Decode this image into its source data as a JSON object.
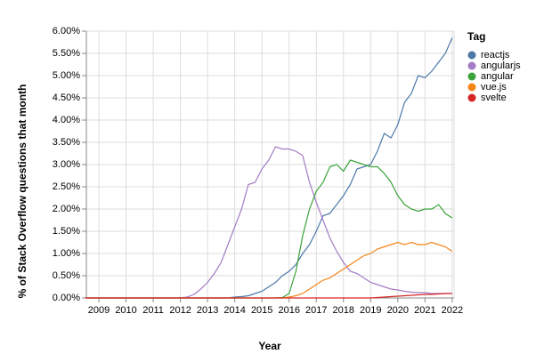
{
  "chart_data": {
    "type": "line",
    "x_label": "Year",
    "y_label": "% of Stack Overflow questions that month",
    "legend_title": "Tag",
    "legend_position": "right",
    "grid": true,
    "x": [
      2008.5,
      2008.75,
      2009,
      2009.25,
      2009.5,
      2009.75,
      2010,
      2010.25,
      2010.5,
      2010.75,
      2011,
      2011.25,
      2011.5,
      2011.75,
      2012,
      2012.25,
      2012.5,
      2012.75,
      2013,
      2013.25,
      2013.5,
      2013.75,
      2014,
      2014.25,
      2014.5,
      2014.75,
      2015,
      2015.25,
      2015.5,
      2015.75,
      2016,
      2016.25,
      2016.5,
      2016.75,
      2017,
      2017.25,
      2017.5,
      2017.75,
      2018,
      2018.25,
      2018.5,
      2018.75,
      2019,
      2019.25,
      2019.5,
      2019.75,
      2020,
      2020.25,
      2020.5,
      2020.75,
      2021,
      2021.25,
      2021.5,
      2021.75,
      2022
    ],
    "xlim": [
      2008.54,
      2022.07
    ],
    "xticks": [
      2009,
      2010,
      2011,
      2012,
      2013,
      2014,
      2015,
      2016,
      2017,
      2018,
      2019,
      2020,
      2021,
      2022
    ],
    "ylim": [
      0,
      6
    ],
    "yticks": [
      {
        "value": 0,
        "label": "0.00%"
      },
      {
        "value": 0.5,
        "label": "0.50%"
      },
      {
        "value": 1,
        "label": "1.00%"
      },
      {
        "value": 1.5,
        "label": "1.50%"
      },
      {
        "value": 2,
        "label": "2.00%"
      },
      {
        "value": 2.5,
        "label": "2.50%"
      },
      {
        "value": 3,
        "label": "3.00%"
      },
      {
        "value": 3.5,
        "label": "3.50%"
      },
      {
        "value": 4,
        "label": "4.00%"
      },
      {
        "value": 4.5,
        "label": "4.50%"
      },
      {
        "value": 5,
        "label": "5.00%"
      },
      {
        "value": 5.5,
        "label": "5.50%"
      },
      {
        "value": 6,
        "label": "6.00%"
      }
    ],
    "series": [
      {
        "name": "reactjs",
        "color": "#4c78a8",
        "values": [
          0,
          0,
          0,
          0,
          0,
          0,
          0,
          0,
          0,
          0,
          0,
          0,
          0,
          0,
          0,
          0,
          0,
          0,
          0,
          0,
          0,
          0,
          0.02,
          0.03,
          0.05,
          0.1,
          0.15,
          0.25,
          0.35,
          0.5,
          0.6,
          0.75,
          1.0,
          1.2,
          1.5,
          1.85,
          1.9,
          2.1,
          2.3,
          2.55,
          2.9,
          2.95,
          3.0,
          3.3,
          3.7,
          3.6,
          3.9,
          4.4,
          4.6,
          5.0,
          4.95,
          5.1,
          5.3,
          5.5,
          5.85
        ]
      },
      {
        "name": "angularjs",
        "color": "#a47cc4",
        "values": [
          0,
          0,
          0,
          0,
          0,
          0,
          0,
          0,
          0,
          0,
          0,
          0,
          0,
          0,
          0,
          0.02,
          0.08,
          0.2,
          0.35,
          0.55,
          0.8,
          1.2,
          1.6,
          2.0,
          2.55,
          2.6,
          2.9,
          3.1,
          3.4,
          3.35,
          3.35,
          3.3,
          3.2,
          2.6,
          2.15,
          1.75,
          1.35,
          1.05,
          0.8,
          0.6,
          0.55,
          0.45,
          0.35,
          0.3,
          0.25,
          0.2,
          0.18,
          0.15,
          0.13,
          0.12,
          0.12,
          0.1,
          0.1,
          0.1,
          0.1
        ]
      },
      {
        "name": "angular",
        "color": "#3aa33a",
        "values": [
          0,
          0,
          0,
          0,
          0,
          0,
          0,
          0,
          0,
          0,
          0,
          0,
          0,
          0,
          0,
          0,
          0,
          0,
          0,
          0,
          0,
          0,
          0,
          0,
          0,
          0,
          0,
          0,
          0,
          0.01,
          0.1,
          0.6,
          1.4,
          2.0,
          2.4,
          2.6,
          2.95,
          3.0,
          2.85,
          3.1,
          3.05,
          3.0,
          2.95,
          2.95,
          2.8,
          2.6,
          2.3,
          2.1,
          2.0,
          1.95,
          2.0,
          2.0,
          2.1,
          1.9,
          1.8
        ]
      },
      {
        "name": "vue.js",
        "color": "#f58518",
        "values": [
          0,
          0,
          0,
          0,
          0,
          0,
          0,
          0,
          0,
          0,
          0,
          0,
          0,
          0,
          0,
          0,
          0,
          0,
          0,
          0,
          0,
          0,
          0,
          0,
          0,
          0,
          0,
          0,
          0,
          0,
          0.02,
          0.05,
          0.1,
          0.2,
          0.3,
          0.4,
          0.45,
          0.55,
          0.65,
          0.75,
          0.85,
          0.95,
          1.0,
          1.1,
          1.15,
          1.2,
          1.25,
          1.2,
          1.25,
          1.2,
          1.2,
          1.25,
          1.2,
          1.15,
          1.05
        ]
      },
      {
        "name": "svelte",
        "color": "#d62728",
        "values": [
          0,
          0,
          0,
          0,
          0,
          0,
          0,
          0,
          0,
          0,
          0,
          0,
          0,
          0,
          0,
          0,
          0,
          0,
          0,
          0,
          0,
          0,
          0,
          0,
          0,
          0,
          0,
          0,
          0,
          0,
          0,
          0,
          0,
          0,
          0,
          0,
          0,
          0,
          0,
          0,
          0,
          0,
          0,
          0.01,
          0.02,
          0.03,
          0.04,
          0.05,
          0.06,
          0.07,
          0.08,
          0.08,
          0.09,
          0.1,
          0.1
        ]
      }
    ]
  }
}
